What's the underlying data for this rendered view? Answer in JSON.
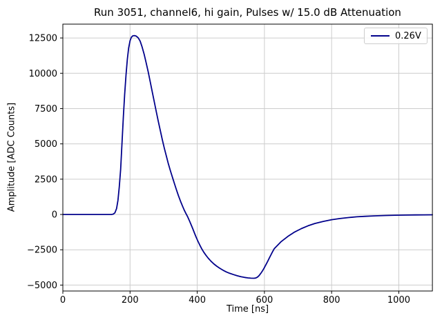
{
  "chart_data": {
    "type": "line",
    "title": "Run 3051, channel6, hi gain, Pulses w/ 15.0 dB Attenuation",
    "xlabel": "Time [ns]",
    "ylabel": "Amplitude [ADC Counts]",
    "xlim": [
      0,
      1100
    ],
    "ylim": [
      -5420,
      13480
    ],
    "grid": true,
    "grid_color": "#cccccc",
    "axis_color": "#000000",
    "background_color": "#ffffff",
    "x_ticks": {
      "values": [
        0,
        200,
        400,
        600,
        800,
        1000
      ],
      "labels": [
        "0",
        "200",
        "400",
        "600",
        "800",
        "1000"
      ]
    },
    "y_ticks": {
      "values": [
        -5000,
        -2500,
        0,
        2500,
        5000,
        7500,
        10000,
        12500
      ],
      "labels": [
        "−5000",
        "−2500",
        "0",
        "2500",
        "5000",
        "7500",
        "10000",
        "12500"
      ]
    },
    "legend": {
      "position": "upper right",
      "entries": [
        {
          "label": "0.26V",
          "color": "#00008b"
        }
      ]
    },
    "series": [
      {
        "name": "0.26V",
        "color": "#00008b",
        "line_width": 1.8,
        "points": [
          [
            0,
            0
          ],
          [
            40,
            0
          ],
          [
            80,
            0
          ],
          [
            120,
            0
          ],
          [
            145,
            0
          ],
          [
            150,
            25
          ],
          [
            155,
            120
          ],
          [
            160,
            420
          ],
          [
            164,
            1000
          ],
          [
            168,
            1950
          ],
          [
            172,
            3200
          ],
          [
            176,
            5000
          ],
          [
            180,
            6900
          ],
          [
            184,
            8500
          ],
          [
            188,
            9900
          ],
          [
            192,
            11000
          ],
          [
            196,
            11800
          ],
          [
            200,
            12300
          ],
          [
            204,
            12550
          ],
          [
            208,
            12650
          ],
          [
            213,
            12670
          ],
          [
            218,
            12640
          ],
          [
            224,
            12520
          ],
          [
            230,
            12280
          ],
          [
            236,
            11860
          ],
          [
            242,
            11350
          ],
          [
            248,
            10750
          ],
          [
            254,
            10100
          ],
          [
            260,
            9400
          ],
          [
            266,
            8700
          ],
          [
            272,
            8000
          ],
          [
            278,
            7300
          ],
          [
            284,
            6600
          ],
          [
            290,
            5950
          ],
          [
            296,
            5300
          ],
          [
            302,
            4700
          ],
          [
            308,
            4150
          ],
          [
            314,
            3600
          ],
          [
            320,
            3100
          ],
          [
            326,
            2650
          ],
          [
            332,
            2200
          ],
          [
            338,
            1760
          ],
          [
            344,
            1340
          ],
          [
            350,
            950
          ],
          [
            356,
            600
          ],
          [
            361,
            330
          ],
          [
            366,
            90
          ],
          [
            371,
            -140
          ],
          [
            376,
            -400
          ],
          [
            381,
            -680
          ],
          [
            386,
            -970
          ],
          [
            391,
            -1270
          ],
          [
            396,
            -1560
          ],
          [
            401,
            -1840
          ],
          [
            407,
            -2140
          ],
          [
            413,
            -2410
          ],
          [
            419,
            -2650
          ],
          [
            426,
            -2890
          ],
          [
            433,
            -3100
          ],
          [
            441,
            -3310
          ],
          [
            449,
            -3490
          ],
          [
            458,
            -3660
          ],
          [
            467,
            -3810
          ],
          [
            477,
            -3950
          ],
          [
            487,
            -4070
          ],
          [
            497,
            -4170
          ],
          [
            508,
            -4260
          ],
          [
            519,
            -4340
          ],
          [
            530,
            -4410
          ],
          [
            541,
            -4460
          ],
          [
            551,
            -4490
          ],
          [
            560,
            -4510
          ],
          [
            569,
            -4515
          ],
          [
            574,
            -4500
          ],
          [
            579,
            -4440
          ],
          [
            584,
            -4330
          ],
          [
            589,
            -4180
          ],
          [
            594,
            -4000
          ],
          [
            599,
            -3800
          ],
          [
            604,
            -3580
          ],
          [
            609,
            -3350
          ],
          [
            614,
            -3110
          ],
          [
            619,
            -2880
          ],
          [
            624,
            -2650
          ],
          [
            629,
            -2430
          ],
          [
            650,
            -1920
          ],
          [
            670,
            -1550
          ],
          [
            690,
            -1240
          ],
          [
            710,
            -1000
          ],
          [
            730,
            -800
          ],
          [
            750,
            -640
          ],
          [
            775,
            -490
          ],
          [
            800,
            -370
          ],
          [
            825,
            -285
          ],
          [
            850,
            -217
          ],
          [
            875,
            -167
          ],
          [
            900,
            -129
          ],
          [
            930,
            -95
          ],
          [
            960,
            -72
          ],
          [
            990,
            -54
          ],
          [
            1020,
            -41
          ],
          [
            1050,
            -32
          ],
          [
            1075,
            -27
          ],
          [
            1100,
            -23
          ]
        ]
      }
    ]
  }
}
